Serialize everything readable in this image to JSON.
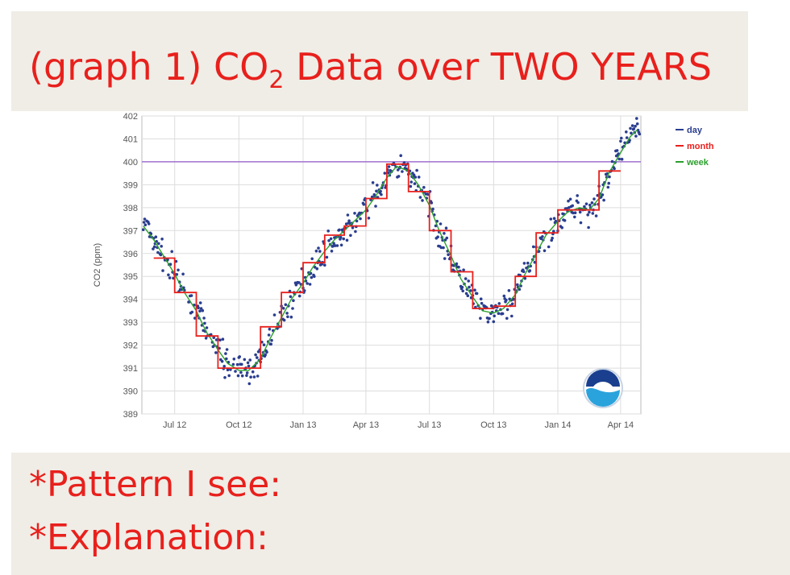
{
  "header": {
    "title_prefix": "(graph 1) CO",
    "title_sub": "2",
    "title_suffix": " Data over TWO YEARS"
  },
  "prompts": {
    "pattern": "*Pattern I see:",
    "explanation": "*Explanation:"
  },
  "colors": {
    "title_red": "#e8201c",
    "panel_bg": "#f0ede6",
    "day": "#2a3d8f",
    "month": "#e8201c",
    "week": "#2ca02c",
    "reference_line": "#a070d0"
  },
  "chart_data": {
    "type": "line",
    "xlabel": "",
    "ylabel": "CO2 (ppm)",
    "ylim": [
      389,
      402
    ],
    "yticks": [
      389,
      390,
      391,
      392,
      393,
      394,
      395,
      396,
      397,
      398,
      399,
      400,
      401,
      402
    ],
    "xlim": [
      "2012-05-15",
      "2014-04-30"
    ],
    "xticks": [
      {
        "label": "Jul 12",
        "date": "2012-07-01"
      },
      {
        "label": "Oct 12",
        "date": "2012-10-01"
      },
      {
        "label": "Jan 13",
        "date": "2013-01-01"
      },
      {
        "label": "Apr 13",
        "date": "2013-04-01"
      },
      {
        "label": "Jul 13",
        "date": "2013-07-01"
      },
      {
        "label": "Oct 13",
        "date": "2013-10-01"
      },
      {
        "label": "Jan 14",
        "date": "2014-01-01"
      },
      {
        "label": "Apr 14",
        "date": "2014-04-01"
      }
    ],
    "reference_line": {
      "y": 400
    },
    "grid": true,
    "legend": {
      "position": "top-right",
      "entries": [
        "day",
        "month",
        "week"
      ]
    },
    "series": [
      {
        "name": "month",
        "style": "step",
        "months": [
          "2012-06",
          "2012-07",
          "2012-08",
          "2012-09",
          "2012-10",
          "2012-11",
          "2012-12",
          "2013-01",
          "2013-02",
          "2013-03",
          "2013-04",
          "2013-05",
          "2013-06",
          "2013-07",
          "2013-08",
          "2013-09",
          "2013-10",
          "2013-11",
          "2013-12",
          "2014-01",
          "2014-02",
          "2014-03"
        ],
        "values": [
          395.8,
          394.3,
          392.4,
          391.0,
          391.0,
          392.8,
          394.3,
          395.6,
          396.8,
          397.2,
          398.4,
          399.9,
          398.7,
          397.0,
          395.2,
          393.6,
          393.7,
          395.0,
          396.9,
          397.9,
          397.9,
          399.6
        ]
      },
      {
        "name": "week",
        "style": "line",
        "dates": [
          "2012-05-17",
          "2012-06-01",
          "2012-06-15",
          "2012-07-01",
          "2012-07-15",
          "2012-08-01",
          "2012-08-15",
          "2012-09-01",
          "2012-09-15",
          "2012-10-01",
          "2012-10-15",
          "2012-11-01",
          "2012-11-15",
          "2012-12-01",
          "2012-12-15",
          "2013-01-01",
          "2013-01-15",
          "2013-02-01",
          "2013-02-15",
          "2013-03-01",
          "2013-03-15",
          "2013-04-01",
          "2013-04-15",
          "2013-05-01",
          "2013-05-15",
          "2013-06-01",
          "2013-06-15",
          "2013-07-01",
          "2013-07-15",
          "2013-08-01",
          "2013-08-15",
          "2013-09-01",
          "2013-09-15",
          "2013-10-01",
          "2013-10-15",
          "2013-11-01",
          "2013-11-15",
          "2013-12-01",
          "2013-12-15",
          "2014-01-01",
          "2014-01-15",
          "2014-02-01",
          "2014-02-15",
          "2014-03-01",
          "2014-03-15",
          "2014-04-01",
          "2014-04-15",
          "2014-04-25"
        ],
        "values": [
          397.2,
          396.6,
          395.9,
          395.1,
          394.3,
          393.5,
          392.6,
          391.8,
          391.2,
          390.9,
          390.9,
          391.4,
          392.3,
          393.2,
          394.0,
          394.7,
          395.4,
          396.1,
          396.6,
          397.0,
          397.4,
          397.9,
          398.5,
          399.3,
          399.8,
          399.6,
          399.0,
          398.1,
          397.0,
          395.9,
          394.9,
          394.1,
          393.5,
          393.4,
          393.6,
          394.2,
          395.1,
          396.0,
          396.8,
          397.4,
          397.8,
          398.0,
          397.9,
          398.4,
          399.5,
          400.4,
          401.1,
          401.4
        ]
      }
    ]
  }
}
